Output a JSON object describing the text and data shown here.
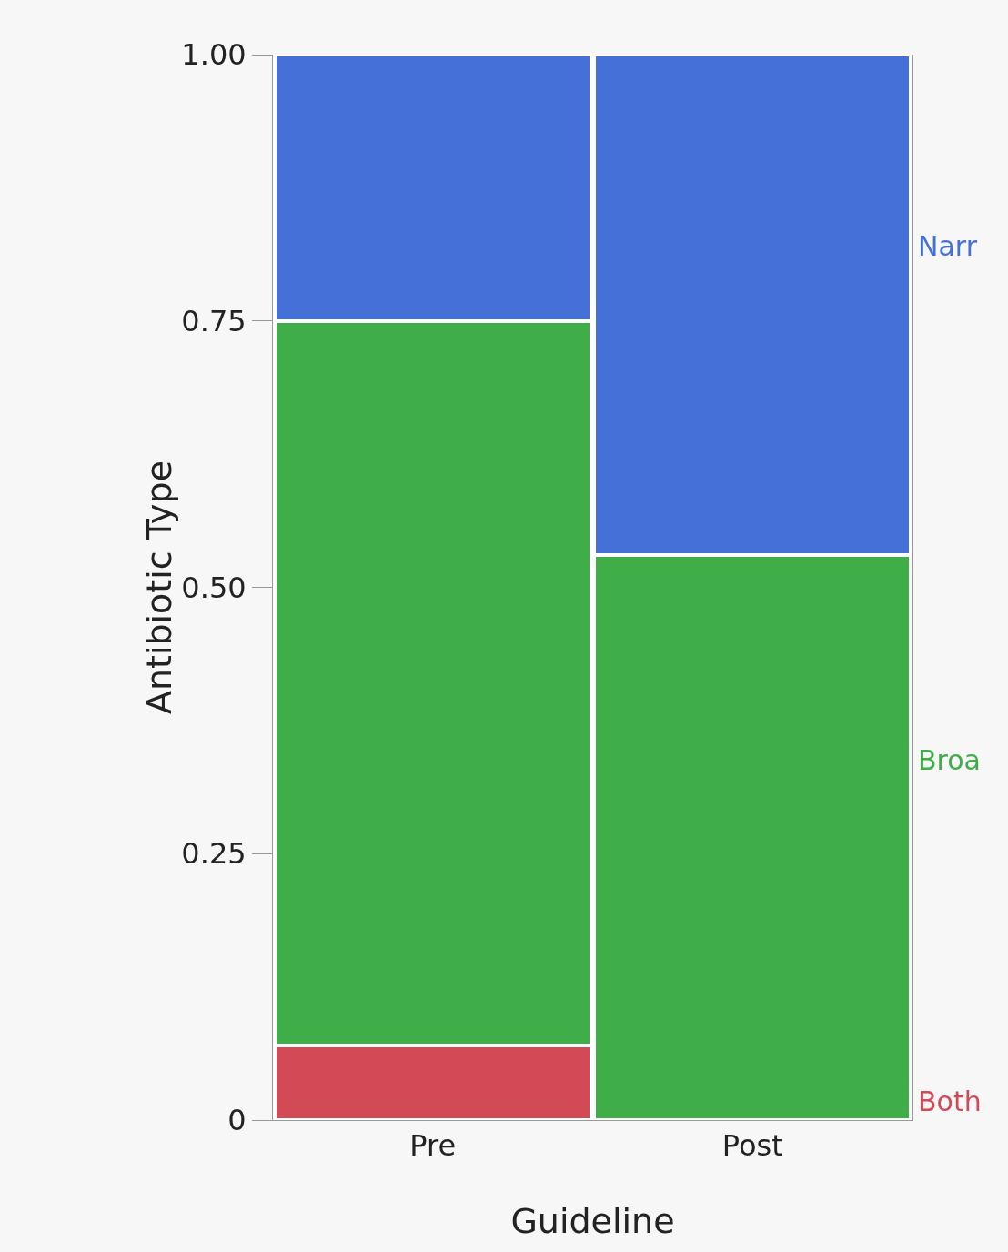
{
  "chart_data": {
    "type": "bar",
    "stacked": true,
    "xlabel": "Guideline",
    "ylabel": "Antibiotic Type",
    "categories": [
      "Pre",
      "Post"
    ],
    "series": [
      {
        "name": "Both",
        "color": "#d24a55",
        "values": [
          0.07,
          0
        ]
      },
      {
        "name": "Broa",
        "color": "#3fae49",
        "values": [
          0.68,
          0.53
        ]
      },
      {
        "name": "Narr",
        "color": "#4470d8",
        "values": [
          0.25,
          0.47
        ]
      }
    ],
    "ylim": [
      0,
      1
    ],
    "yticks": [
      {
        "value": 0,
        "label": "0"
      },
      0.25,
      {
        "value": 0.5,
        "label": "0.50"
      },
      0.75,
      {
        "value": 1,
        "label": "1.00"
      }
    ],
    "legend": false
  }
}
